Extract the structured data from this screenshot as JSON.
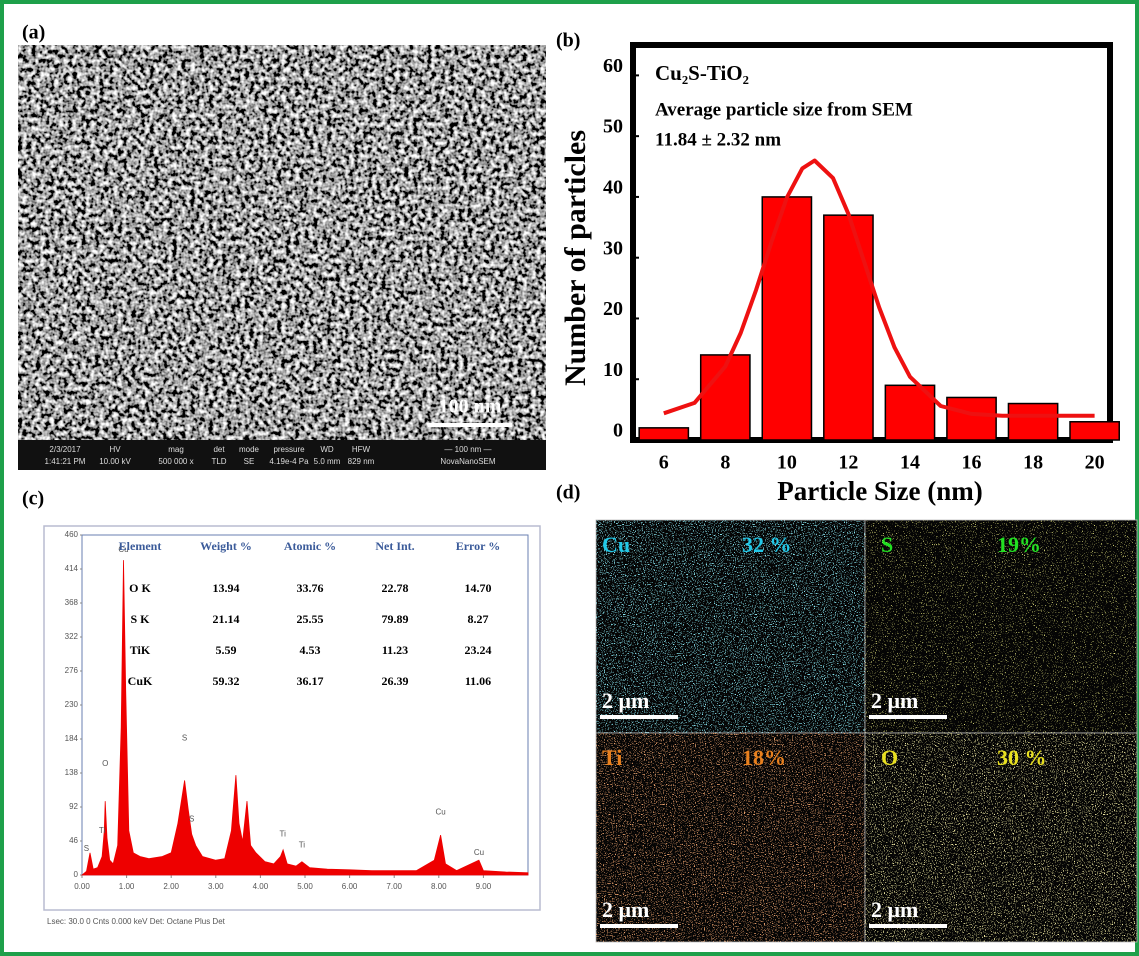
{
  "panel_labels": [
    "(a)",
    "(b)",
    "(c)",
    "(d)"
  ],
  "sem": {
    "scale_bar": "100 nm",
    "info_top": [
      "2/3/2017",
      "HV",
      "mag",
      "det",
      "mode",
      "pressure",
      "WD",
      "HFW",
      "— 100 nm —"
    ],
    "info_bottom": [
      "1:41:21 PM",
      "10.00 kV",
      "500 000 x",
      "TLD",
      "SE",
      "4.19e-4 Pa",
      "5.0 mm",
      "829 nm",
      "NovaNanoSEM"
    ]
  },
  "chart_data": [
    {
      "type": "bar",
      "title": "Cu₂S-TiO₂",
      "annotations": [
        "Average particle size from SEM",
        "11.84 ± 2.32 nm"
      ],
      "x_label": "Particle Size (nm)",
      "y_label": "Number of particles",
      "x": [
        6,
        8,
        10,
        12,
        14,
        16,
        18,
        20
      ],
      "values": [
        2,
        14,
        40,
        37,
        9,
        7,
        6,
        3
      ],
      "color": "#ff0000",
      "fit": {
        "color": "#ee1111",
        "x": [
          6,
          7,
          8,
          8.5,
          9,
          9.5,
          10,
          10.5,
          10.9,
          11.5,
          12,
          12.5,
          13,
          13.5,
          14,
          15,
          16,
          17,
          18,
          19,
          20
        ],
        "values": [
          4.4,
          6.1,
          12.1,
          17.6,
          24.7,
          32.6,
          39.9,
          44.7,
          46,
          43.1,
          37.2,
          29.5,
          21.8,
          15.2,
          10.4,
          5.6,
          4.3,
          4,
          4,
          4,
          4
        ]
      },
      "xlim": [
        5,
        20.5
      ],
      "ylim": [
        0,
        65
      ],
      "xticks": [
        6,
        8,
        10,
        12,
        14,
        16,
        18,
        20
      ],
      "yticks": [
        0,
        10,
        20,
        30,
        40,
        50,
        60
      ]
    },
    {
      "type": "area",
      "color": "#ee0000",
      "x": [
        0,
        0.1,
        0.18,
        0.25,
        0.35,
        0.45,
        0.5,
        0.52,
        0.56,
        0.62,
        0.7,
        0.8,
        0.88,
        0.93,
        0.98,
        1.05,
        1.15,
        1.3,
        1.5,
        1.8,
        2.0,
        2.15,
        2.3,
        2.38,
        2.46,
        2.55,
        2.7,
        3.0,
        3.2,
        3.35,
        3.45,
        3.52,
        3.6,
        3.7,
        3.78,
        3.9,
        4.1,
        4.3,
        4.45,
        4.51,
        4.6,
        4.8,
        4.93,
        5.1,
        5.5,
        6.0,
        6.5,
        7.0,
        7.5,
        7.9,
        8.04,
        8.15,
        8.4,
        8.9,
        9.0,
        9.5,
        10
      ],
      "values": [
        0,
        5,
        30,
        8,
        10,
        25,
        60,
        100,
        50,
        20,
        15,
        40,
        200,
        426,
        250,
        60,
        30,
        25,
        22,
        25,
        30,
        70,
        128,
        90,
        55,
        40,
        25,
        20,
        22,
        60,
        135,
        70,
        45,
        100,
        40,
        30,
        18,
        15,
        25,
        34,
        15,
        12,
        18,
        10,
        8,
        7,
        6,
        6,
        6,
        20,
        54,
        15,
        6,
        20,
        6,
        4,
        3
      ],
      "peak_labels": [
        {
          "text": "S",
          "x": 0.1,
          "y": 35
        },
        {
          "text": "Ti",
          "x": 0.45,
          "y": 60
        },
        {
          "text": "O",
          "x": 0.52,
          "y": 150
        },
        {
          "text": "Cu",
          "x": 0.93,
          "y": 440
        },
        {
          "text": "S",
          "x": 2.3,
          "y": 185
        },
        {
          "text": "S",
          "x": 2.46,
          "y": 75
        },
        {
          "text": "Ti",
          "x": 4.5,
          "y": 55
        },
        {
          "text": "Ti",
          "x": 4.93,
          "y": 40
        },
        {
          "text": "Cu",
          "x": 8.04,
          "y": 85
        },
        {
          "text": "Cu",
          "x": 8.9,
          "y": 30
        }
      ],
      "xlim": [
        0,
        10
      ],
      "ylim": [
        0,
        460
      ],
      "xticks": [
        {
          "value": 0,
          "label": "0.00"
        },
        {
          "value": 1,
          "label": "1.00"
        },
        {
          "value": 2,
          "label": "2.00"
        },
        {
          "value": 3,
          "label": "3.00"
        },
        {
          "value": 4,
          "label": "4.00"
        },
        {
          "value": 5,
          "label": "5.00"
        },
        {
          "value": 6,
          "label": "6.00"
        },
        {
          "value": 7,
          "label": "7.00"
        },
        {
          "value": 8,
          "label": "8.00"
        },
        {
          "value": 9,
          "label": "9.00"
        }
      ],
      "yticks": [
        0,
        46,
        92,
        138,
        184,
        230,
        276,
        322,
        368,
        414,
        460
      ]
    }
  ],
  "eds_table": {
    "header": [
      "Element",
      "Weight %",
      "Atomic %",
      "Net Int.",
      "Error %"
    ],
    "rows": [
      [
        "O K",
        "13.94",
        "33.76",
        "22.78",
        "14.70"
      ],
      [
        "S K",
        "21.14",
        "25.55",
        "79.89",
        "8.27"
      ],
      [
        "TiK",
        "5.59",
        "4.53",
        "11.23",
        "23.24"
      ],
      [
        "CuK",
        "59.32",
        "36.17",
        "26.39",
        "11.06"
      ]
    ]
  },
  "eds_footer": "Lsec: 30.0 0 Cnts 0.000 keV Det: Octane Plus Det",
  "maps": [
    {
      "element": "Cu",
      "percent": "32 %",
      "scale": "2 μm"
    },
    {
      "element": "S",
      "percent": "19%",
      "scale": "2 μm"
    },
    {
      "element": "Ti",
      "percent": "18%",
      "scale": "2 μm"
    },
    {
      "element": "O",
      "percent": "30 %",
      "scale": "2 μm"
    }
  ]
}
